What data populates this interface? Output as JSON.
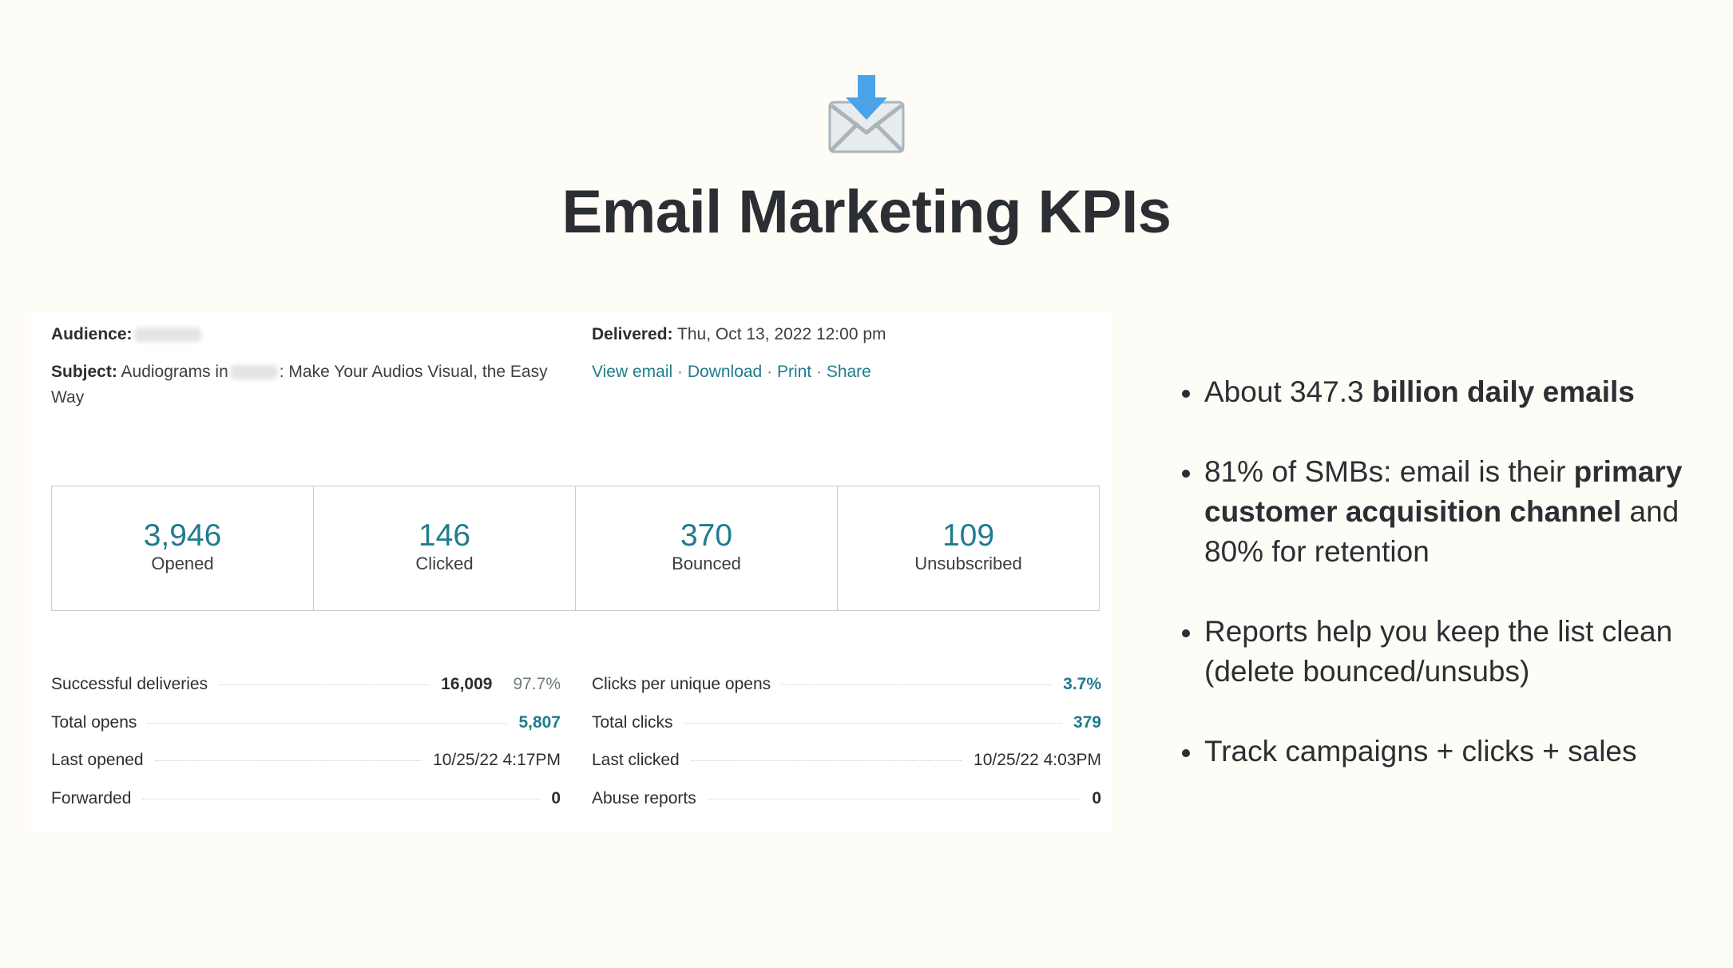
{
  "page": {
    "title": "Email Marketing KPIs",
    "icon": "envelope-with-arrow-icon"
  },
  "report": {
    "audience_label": "Audience:",
    "subject_label": "Subject:",
    "subject_pre": "Audiograms in",
    "subject_post": ": Make Your Audios Visual, the Easy Way",
    "delivered_label": "Delivered:",
    "delivered_value": "Thu, Oct 13, 2022 12:00 pm",
    "links": {
      "view_email": "View email",
      "download": "Download",
      "print": "Print",
      "share": "Share",
      "separator": "·"
    },
    "kpis": [
      {
        "value": "3,946",
        "label": "Opened"
      },
      {
        "value": "146",
        "label": "Clicked"
      },
      {
        "value": "370",
        "label": "Bounced"
      },
      {
        "value": "109",
        "label": "Unsubscribed"
      }
    ],
    "stats_left": [
      {
        "label": "Successful deliveries",
        "value": "16,009",
        "extra": "97.7%"
      },
      {
        "label": "Total opens",
        "value": "5,807"
      },
      {
        "label": "Last opened",
        "value": "10/25/22 4:17PM"
      },
      {
        "label": "Forwarded",
        "value": "0"
      }
    ],
    "stats_right": [
      {
        "label": "Clicks per unique opens",
        "value": "3.7%"
      },
      {
        "label": "Total clicks",
        "value": "379"
      },
      {
        "label": "Last clicked",
        "value": "10/25/22 4:03PM"
      },
      {
        "label": "Abuse reports",
        "value": "0"
      }
    ]
  },
  "bullets": {
    "b1_pre": "About 347.3 ",
    "b1_bold": "billion daily emails",
    "b2_pre": "81% of SMBs: email is their ",
    "b2_bold": "primary customer acquisition channel",
    "b2_post": " and 80% for retention",
    "b3": "Reports help you keep the list clean (delete bounced/unsubs)",
    "b4": "Track campaigns + clicks + sales"
  },
  "colors": {
    "background": "#fefcf6",
    "accent_teal": "#1f7c8e",
    "text_dark": "#2b2f33",
    "icon_blue": "#4aa3e8",
    "icon_grey": "#aab4bb"
  }
}
